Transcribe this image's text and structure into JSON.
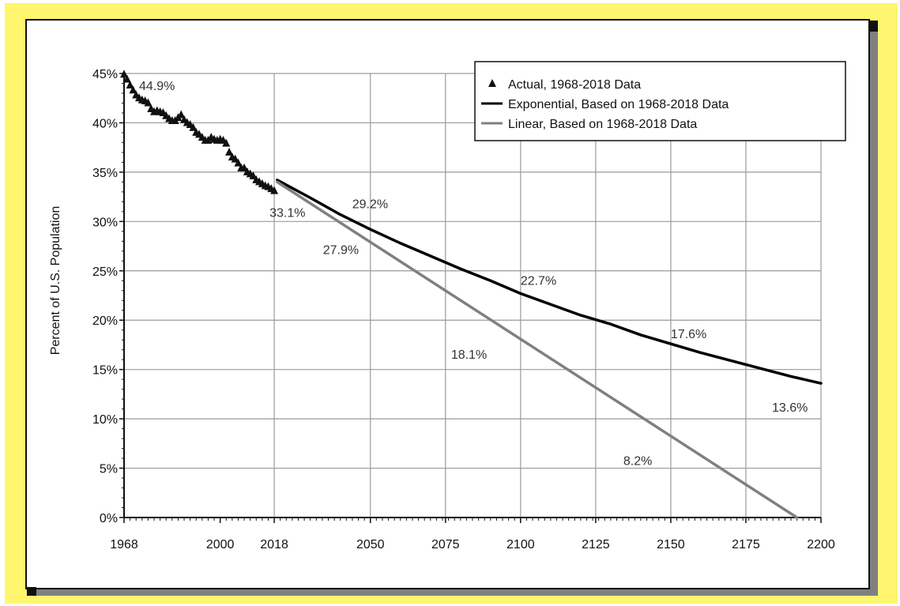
{
  "chart_data": {
    "type": "line",
    "title": "",
    "xlabel": "",
    "ylabel": "Percent of U.S. Population",
    "xlim": [
      1968,
      2200
    ],
    "ylim": [
      0,
      45
    ],
    "x_ticks": [
      1968,
      2000,
      2018,
      2050,
      2075,
      2100,
      2125,
      2150,
      2175,
      2200
    ],
    "x_tick_labels": [
      "1968",
      "2000",
      "2018",
      "2050",
      "2075",
      "2100",
      "2125",
      "2150",
      "2175",
      "2200"
    ],
    "y_ticks": [
      0,
      5,
      10,
      15,
      20,
      25,
      30,
      35,
      40,
      45
    ],
    "y_tick_labels": [
      "0%",
      "5%",
      "10%",
      "15%",
      "20%",
      "25%",
      "30%",
      "35%",
      "40%",
      "45%"
    ],
    "grid": true,
    "legend_position": "top-right",
    "series": [
      {
        "name": "Actual, 1968-2018 Data",
        "style": "markers",
        "color": "#111111",
        "marker": "triangle",
        "x": [
          1968,
          1969,
          1970,
          1971,
          1972,
          1973,
          1974,
          1975,
          1976,
          1977,
          1978,
          1979,
          1980,
          1981,
          1982,
          1983,
          1984,
          1985,
          1986,
          1987,
          1988,
          1989,
          1990,
          1991,
          1992,
          1993,
          1994,
          1995,
          1996,
          1997,
          1998,
          1999,
          2000,
          2001,
          2002,
          2003,
          2004,
          2005,
          2006,
          2007,
          2008,
          2009,
          2010,
          2011,
          2012,
          2013,
          2014,
          2015,
          2016,
          2017,
          2018
        ],
        "y": [
          44.9,
          44.4,
          43.8,
          43.3,
          42.8,
          42.5,
          42.3,
          42.2,
          42.0,
          41.4,
          41.1,
          41.2,
          41.1,
          41.0,
          40.7,
          40.4,
          40.2,
          40.2,
          40.5,
          40.8,
          40.3,
          40.0,
          39.8,
          39.5,
          39.0,
          38.8,
          38.5,
          38.2,
          38.2,
          38.5,
          38.3,
          38.2,
          38.3,
          38.2,
          37.9,
          37.0,
          36.5,
          36.3,
          35.9,
          35.4,
          35.4,
          35.0,
          34.8,
          34.6,
          34.2,
          34.0,
          33.8,
          33.6,
          33.5,
          33.3,
          33.1
        ]
      },
      {
        "name": "Exponential, Based on 1968-2018 Data",
        "style": "line",
        "color": "#000000",
        "x": [
          2019,
          2030,
          2040,
          2050,
          2060,
          2070,
          2080,
          2090,
          2100,
          2110,
          2120,
          2130,
          2140,
          2150,
          2160,
          2170,
          2180,
          2190,
          2200
        ],
        "y": [
          34.2,
          32.4,
          30.7,
          29.2,
          27.8,
          26.5,
          25.2,
          24.0,
          22.7,
          21.6,
          20.5,
          19.6,
          18.5,
          17.6,
          16.7,
          15.9,
          15.1,
          14.3,
          13.6
        ]
      },
      {
        "name": "Linear, Based on 1968-2018 Data",
        "style": "line",
        "color": "#808080",
        "x": [
          2019,
          2192
        ],
        "y": [
          34.0,
          0
        ]
      }
    ],
    "annotations": [
      {
        "text": "44.9%",
        "x": 1968,
        "y": 44.9
      },
      {
        "text": "33.1%",
        "x": 2018,
        "y": 33.1
      },
      {
        "text": "29.2%",
        "x": 2050,
        "y": 29.2
      },
      {
        "text": "27.9%",
        "x": 2050,
        "y": 27.9
      },
      {
        "text": "22.7%",
        "x": 2100,
        "y": 22.7
      },
      {
        "text": "18.1%",
        "x": 2100,
        "y": 18.1
      },
      {
        "text": "17.6%",
        "x": 2150,
        "y": 17.6
      },
      {
        "text": "8.2%",
        "x": 2150,
        "y": 8.2
      },
      {
        "text": "13.6%",
        "x": 2200,
        "y": 13.6
      }
    ]
  }
}
